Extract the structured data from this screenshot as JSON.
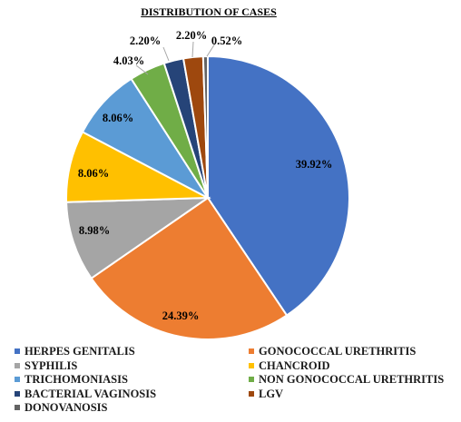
{
  "chart_data": {
    "type": "pie",
    "title": "DISTRIBUTION OF CASES",
    "slices": [
      {
        "name": "HERPES GENITALIS",
        "value": 39.92,
        "label": "39.92%",
        "color": "#4472C4"
      },
      {
        "name": "GONOCOCCAL URETHRITIS",
        "value": 24.39,
        "label": "24.39%",
        "color": "#ED7D31"
      },
      {
        "name": "SYPHILIS",
        "value": 8.98,
        "label": "8.98%",
        "color": "#A5A5A5"
      },
      {
        "name": "CHANCROID",
        "value": 8.06,
        "label": "8.06%",
        "color": "#FFC000"
      },
      {
        "name": "TRICHOMONIASIS",
        "value": 8.06,
        "label": "8.06%",
        "color": "#5B9BD5"
      },
      {
        "name": "NON GONOCOCCAL URETHRITIS",
        "value": 4.03,
        "label": "4.03%",
        "color": "#70AD47"
      },
      {
        "name": "BACTERIAL VAGINOSIS",
        "value": 2.2,
        "label": "2.20%",
        "color": "#264478"
      },
      {
        "name": "LGV",
        "value": 2.2,
        "label": "2.20%",
        "color": "#9E480E"
      },
      {
        "name": "DONOVANOSIS",
        "value": 0.52,
        "label": "0.52%",
        "color": "#636363"
      }
    ],
    "start_angle_deg": 0,
    "direction": "clockwise",
    "legend_position": "bottom"
  }
}
